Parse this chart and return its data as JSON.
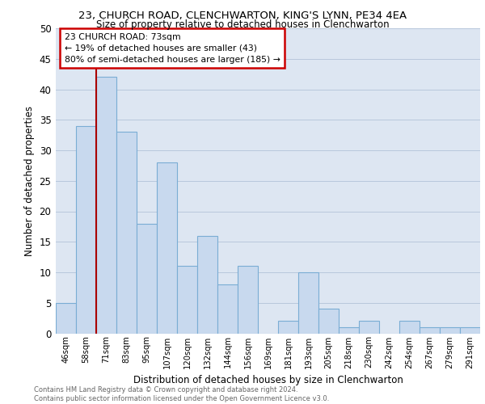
{
  "title1": "23, CHURCH ROAD, CLENCHWARTON, KING'S LYNN, PE34 4EA",
  "title2": "Size of property relative to detached houses in Clenchwarton",
  "xlabel": "Distribution of detached houses by size in Clenchwarton",
  "ylabel": "Number of detached properties",
  "categories": [
    "46sqm",
    "58sqm",
    "71sqm",
    "83sqm",
    "95sqm",
    "107sqm",
    "120sqm",
    "132sqm",
    "144sqm",
    "156sqm",
    "169sqm",
    "181sqm",
    "193sqm",
    "205sqm",
    "218sqm",
    "230sqm",
    "242sqm",
    "254sqm",
    "267sqm",
    "279sqm",
    "291sqm"
  ],
  "values": [
    5,
    34,
    42,
    33,
    18,
    28,
    11,
    16,
    8,
    11,
    0,
    2,
    10,
    4,
    1,
    2,
    0,
    2,
    1,
    1,
    1
  ],
  "bar_color": "#c8d9ee",
  "bar_edge_color": "#7aadd4",
  "vline_x": 2,
  "vline_color": "#aa0000",
  "annotation_text": "23 CHURCH ROAD: 73sqm\n← 19% of detached houses are smaller (43)\n80% of semi-detached houses are larger (185) →",
  "annotation_box_color": "#ffffff",
  "annotation_box_edge": "#cc0000",
  "ylim": [
    0,
    50
  ],
  "yticks": [
    0,
    5,
    10,
    15,
    20,
    25,
    30,
    35,
    40,
    45,
    50
  ],
  "grid_color": "#b8c8dc",
  "bg_color": "#dde6f2",
  "footer": "Contains HM Land Registry data © Crown copyright and database right 2024.\nContains public sector information licensed under the Open Government Licence v3.0."
}
